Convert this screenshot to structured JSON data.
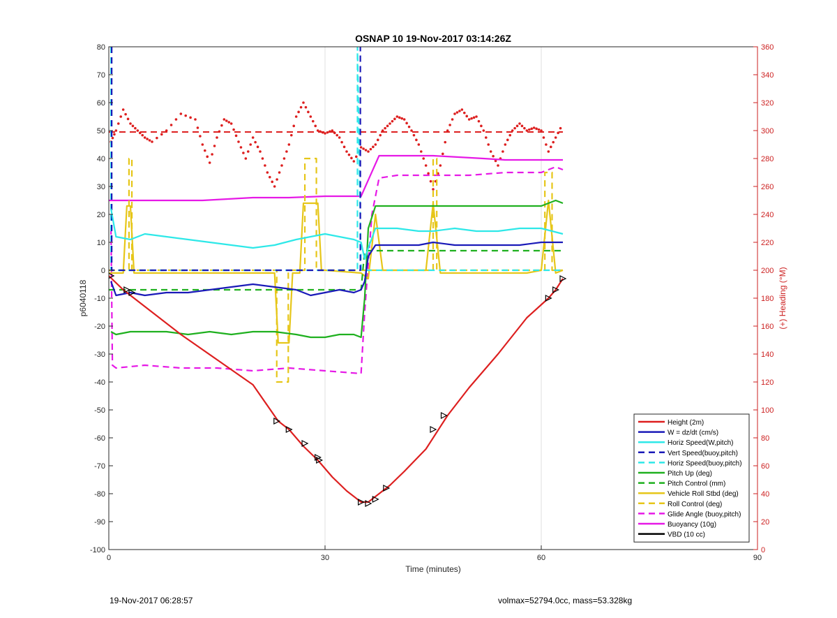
{
  "chart_data": {
    "type": "line",
    "title": "OSNAP 10 19-Nov-2017 03:14:26Z",
    "xlabel": "Time (minutes)",
    "ylabel": "p6040118",
    "y2label": "(+) Heading (°M)",
    "xlim": [
      0,
      90
    ],
    "ylim": [
      -100,
      80
    ],
    "y2lim": [
      0,
      360
    ],
    "xticks": [
      0,
      30,
      60,
      90
    ],
    "yticks": [
      -100,
      -90,
      -80,
      -70,
      -60,
      -50,
      -40,
      -30,
      -20,
      -10,
      0,
      10,
      20,
      30,
      40,
      50,
      60,
      70,
      80
    ],
    "y2ticks": [
      0,
      20,
      40,
      60,
      80,
      100,
      120,
      140,
      160,
      180,
      200,
      220,
      240,
      260,
      280,
      300,
      320,
      340,
      360
    ],
    "grid": true,
    "legend_position": "bottom-right",
    "colors": {
      "red": "#dd1f1f",
      "blue": "#1a1ab8",
      "cyan": "#2ee8e8",
      "green": "#1fb01f",
      "yellow": "#e6c619",
      "magenta": "#e619e6",
      "black": "#000000"
    },
    "series": [
      {
        "name": "Height (2m)",
        "color": "red",
        "style": "solid",
        "x": [
          0,
          2,
          5,
          10,
          15,
          20,
          23.5,
          25,
          27,
          29,
          31,
          33,
          35,
          36,
          37,
          39,
          41,
          44,
          47,
          50,
          54,
          58,
          61,
          62,
          63
        ],
        "y": [
          -2,
          -7,
          -13,
          -23,
          -32,
          -41,
          -54,
          -57,
          -63,
          -68,
          -74,
          -79,
          -83,
          -83,
          -81,
          -77,
          -72,
          -64,
          -52,
          -42,
          -30,
          -17,
          -10,
          -7,
          -3
        ]
      },
      {
        "name": "W = dz/dt (cm/s)",
        "color": "blue",
        "style": "solid",
        "x": [
          0.3,
          1,
          3,
          5,
          8,
          11,
          14,
          17,
          20,
          23,
          26,
          28,
          30,
          32,
          34,
          35,
          35.5,
          36,
          37,
          40,
          43,
          45,
          48,
          51,
          54,
          57,
          60,
          63
        ],
        "y": [
          -4,
          -9,
          -8,
          -9,
          -8,
          -8,
          -7,
          -6,
          -5,
          -6,
          -7,
          -9,
          -8,
          -7,
          -8,
          -7,
          -4,
          5,
          9,
          9,
          9,
          10,
          9,
          9,
          9,
          9,
          10,
          10
        ]
      },
      {
        "name": "Horiz Speed(W,pitch)",
        "color": "cyan",
        "style": "solid",
        "x": [
          0.3,
          1,
          3,
          5,
          8,
          11,
          14,
          17,
          20,
          23,
          26,
          28,
          30,
          32,
          34,
          35,
          35.5,
          36,
          37,
          40,
          43,
          45,
          48,
          51,
          54,
          57,
          60,
          63
        ],
        "y": [
          22,
          12,
          11,
          13,
          12,
          11,
          10,
          9,
          8,
          9,
          11,
          12,
          13,
          12,
          11,
          10,
          4,
          8,
          15,
          15,
          14,
          14,
          15,
          14,
          14,
          15,
          15,
          13
        ]
      },
      {
        "name": "Vert Speed(buoy,pitch)",
        "color": "blue",
        "style": "dashed",
        "x": [
          0.4,
          0.4,
          34.9,
          34.9
        ],
        "y": [
          80,
          0,
          0,
          80
        ]
      },
      {
        "name": "Horiz Speed(buoy,pitch)",
        "color": "cyan",
        "style": "dashed",
        "x": [
          0.3,
          0.3,
          1,
          34.5,
          34.5,
          35,
          35.5,
          63
        ],
        "y": [
          80,
          0,
          0,
          0,
          80,
          0,
          0,
          0
        ]
      },
      {
        "name": "Pitch Up (deg)",
        "color": "green",
        "style": "solid",
        "x": [
          0.3,
          1,
          3,
          5,
          8,
          11,
          14,
          17,
          20,
          23,
          26,
          28,
          30,
          32,
          34,
          35,
          35.5,
          36,
          37,
          40,
          43,
          45,
          48,
          51,
          54,
          57,
          60,
          62,
          63
        ],
        "y": [
          -22,
          -23,
          -22,
          -22,
          -22,
          -23,
          -22,
          -23,
          -22,
          -22,
          -23,
          -24,
          -24,
          -23,
          -23,
          -24,
          -10,
          15,
          23,
          23,
          23,
          23,
          23,
          23,
          23,
          23,
          23,
          25,
          24
        ]
      },
      {
        "name": "Pitch Control (mm)",
        "color": "green",
        "style": "dashed",
        "x": [
          0,
          35,
          35.5,
          63
        ],
        "y": [
          -7,
          -7,
          7,
          7
        ]
      },
      {
        "name": "Vehicle Roll Stbd (deg)",
        "color": "yellow",
        "style": "solid",
        "x": [
          0,
          2,
          2.5,
          3,
          3.5,
          10,
          20,
          23,
          23.5,
          25,
          25.5,
          26.5,
          27,
          29,
          29.5,
          30,
          35,
          36,
          37,
          38,
          44,
          45,
          46,
          58,
          60,
          61,
          62,
          63
        ],
        "y": [
          -1,
          -1,
          23,
          23,
          -1,
          -1,
          -1,
          -1,
          -26,
          -26,
          -1,
          -1,
          24,
          24,
          0,
          0,
          -1,
          -3,
          20,
          0,
          0,
          24,
          -1,
          -1,
          0,
          25,
          -1,
          0
        ]
      },
      {
        "name": "Roll Control (deg)",
        "color": "yellow",
        "style": "dashed",
        "x": [
          0,
          2.8,
          2.8,
          3.2,
          3.2,
          23.3,
          23.3,
          24.9,
          24.9,
          27.2,
          27.2,
          28.8,
          28.8,
          35.5,
          36,
          45,
          45,
          45.5,
          45.5,
          60.5,
          60.5,
          61.5,
          61.5,
          63
        ],
        "y": [
          0,
          0,
          40,
          40,
          0,
          0,
          -40,
          -40,
          0,
          0,
          40,
          40,
          0,
          0,
          0,
          0,
          40,
          40,
          0,
          0,
          35,
          35,
          0,
          0
        ]
      },
      {
        "name": "Glide Angle (buoy,pitch)",
        "color": "magenta",
        "style": "dashed",
        "x": [
          0.3,
          0.5,
          1,
          5,
          10,
          15,
          20,
          25,
          30,
          35,
          35.5,
          36.5,
          37.5,
          40,
          45,
          50,
          55,
          60,
          62,
          63
        ],
        "y": [
          15,
          -34,
          -35,
          -34,
          -35,
          -35,
          -36,
          -35,
          -36,
          -37,
          -15,
          20,
          33,
          34,
          34,
          34,
          35,
          35,
          37,
          36
        ]
      },
      {
        "name": "Buoyancy (10g)",
        "color": "magenta",
        "style": "solid",
        "x": [
          0,
          5,
          13,
          20,
          25,
          30,
          35,
          37.5,
          45,
          52,
          55,
          63
        ],
        "y": [
          25,
          25,
          25,
          26,
          26,
          26.5,
          26.5,
          41,
          41,
          40,
          39.5,
          39.5
        ]
      },
      {
        "name": "VBD (10 cc)",
        "color": "black",
        "style": "solid",
        "x": [
          0,
          0.6,
          1,
          10,
          20,
          30,
          35,
          36.5,
          37,
          40,
          50,
          63
        ],
        "y": [
          -2,
          -7,
          -7,
          -7,
          -7,
          -7,
          -7,
          5,
          7,
          7,
          7,
          7
        ]
      }
    ],
    "heading_series": {
      "label": "Heading",
      "color": "red",
      "style": "dotted",
      "axis": "right",
      "x": [
        0.3,
        1,
        2,
        3,
        4,
        5,
        6,
        8,
        10,
        12,
        13,
        14,
        15,
        16,
        17,
        18,
        19,
        20,
        21,
        22,
        23,
        24,
        25,
        26,
        27,
        28,
        29,
        30,
        31,
        32,
        33,
        34,
        35,
        36,
        37,
        38,
        39,
        40,
        41,
        42,
        43,
        44,
        45,
        46,
        47,
        48,
        49,
        50,
        51,
        52,
        53,
        54,
        55,
        56,
        57,
        58,
        59,
        60,
        61,
        62,
        63
      ],
      "y": [
        292,
        300,
        315,
        305,
        300,
        295,
        292,
        300,
        312,
        308,
        290,
        277,
        295,
        308,
        305,
        292,
        280,
        295,
        285,
        270,
        260,
        275,
        290,
        310,
        320,
        310,
        300,
        298,
        300,
        295,
        285,
        278,
        288,
        285,
        290,
        300,
        305,
        310,
        308,
        300,
        290,
        275,
        258,
        275,
        300,
        312,
        315,
        308,
        310,
        300,
        285,
        275,
        290,
        300,
        305,
        300,
        302,
        300,
        285,
        295,
        305
      ]
    },
    "heading_reference": {
      "color": "red",
      "style": "dashed",
      "axis": "right",
      "x": [
        0,
        63
      ],
      "y": [
        299,
        299
      ]
    },
    "height_markers": {
      "color": "black",
      "symbol": "triangle",
      "x": [
        0.3,
        2.5,
        3.2,
        23.3,
        25,
        27.2,
        29,
        29.2,
        35,
        36,
        37,
        38.5,
        45,
        46.5,
        61,
        62,
        63
      ],
      "y": [
        -2,
        -7,
        -8,
        -54,
        -57,
        -62,
        -67,
        -68,
        -83,
        -83.5,
        -82,
        -78,
        -57,
        -52,
        -10,
        -7,
        -3
      ]
    }
  },
  "footer": {
    "left": "19-Nov-2017 06:28:57",
    "right": "volmax=52794.0cc, mass=53.328kg"
  }
}
